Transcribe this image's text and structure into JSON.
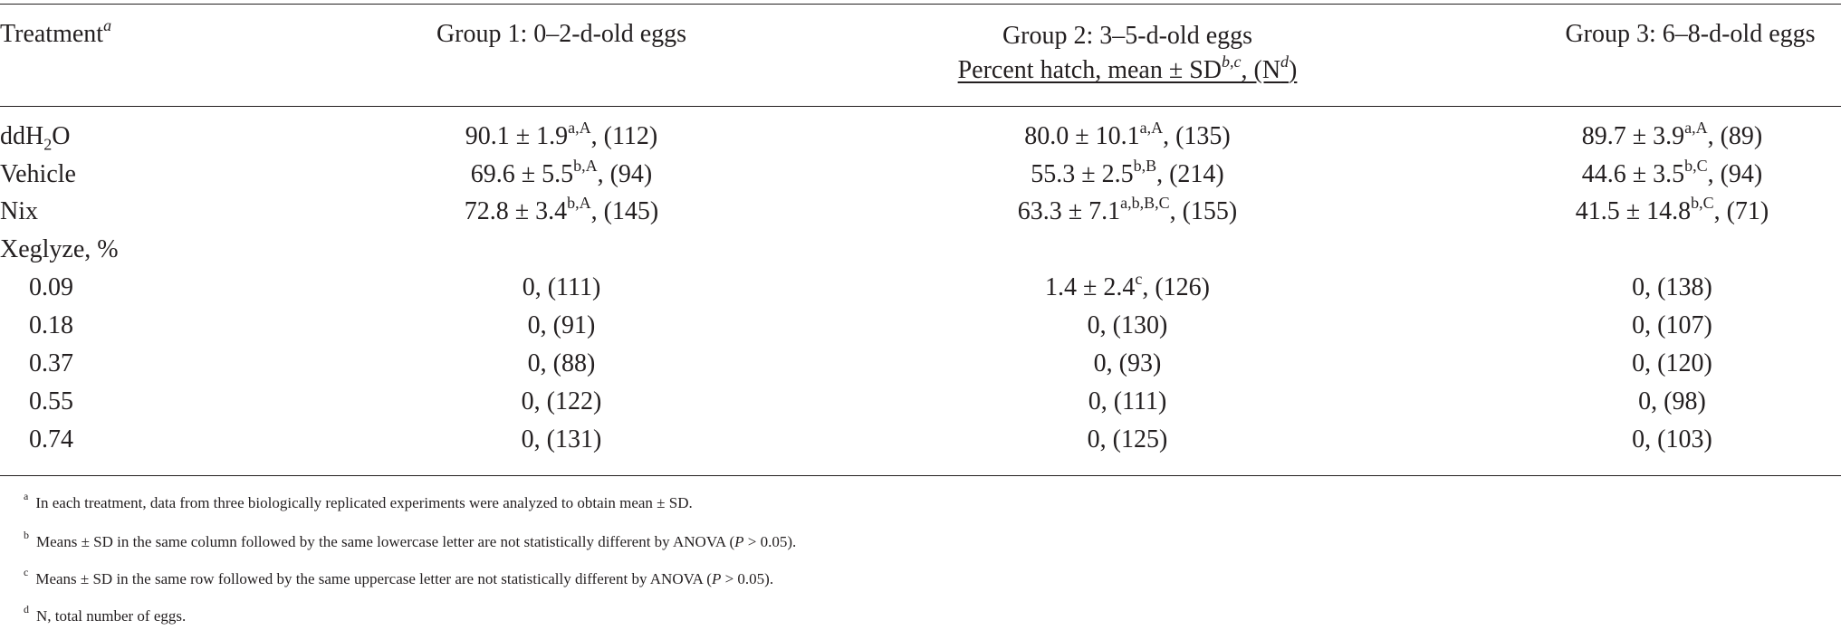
{
  "header": {
    "treatment": "Treatment",
    "treatment_sup": "a",
    "group1": "Group 1: 0–2-d-old eggs",
    "group2": "Group 2: 3–5-d-old eggs",
    "group3": "Group 3: 6–8-d-old eggs",
    "subheader_main": "Percent hatch, mean ± SD",
    "subheader_sup": "b,c",
    "subheader_n_open": ", (N",
    "subheader_n_sup": "d",
    "subheader_n_close": ")"
  },
  "rows": [
    {
      "label_a": "ddH",
      "label_sub": "2",
      "label_b": "O",
      "c1": {
        "val": "90.1 ± 1.9",
        "sup": "a,A",
        "n": ", (112)"
      },
      "c2": {
        "val": "80.0 ± 10.1",
        "sup": "a,A",
        "n": ", (135)"
      },
      "c3": {
        "val": "89.7 ± 3.9",
        "sup": "a,A",
        "n": ", (89)"
      }
    },
    {
      "label": "Vehicle",
      "c1": {
        "val": "69.6 ± 5.5",
        "sup": "b,A",
        "n": ", (94)"
      },
      "c2": {
        "val": "55.3 ± 2.5",
        "sup": "b,B",
        "n": ", (214)"
      },
      "c3": {
        "val": "44.6 ± 3.5",
        "sup": "b,C",
        "n": ", (94)"
      }
    },
    {
      "label": "Nix",
      "c1": {
        "val": "72.8 ± 3.4",
        "sup": "b,A",
        "n": ", (145)"
      },
      "c2": {
        "val": "63.3 ± 7.1",
        "sup": "a,b,B,C",
        "n": ", (155)"
      },
      "c3": {
        "val": "41.5 ± 14.8",
        "sup": "b,C",
        "n": ", (71)"
      }
    },
    {
      "label": "Xeglyze, %"
    },
    {
      "label": "0.09",
      "c1": {
        "val": "0, (111)"
      },
      "c2": {
        "val": "1.4 ± 2.4",
        "sup": "c",
        "n": ", (126)"
      },
      "c3": {
        "val": "0, (138)"
      }
    },
    {
      "label": "0.18",
      "c1": {
        "val": "0, (91)"
      },
      "c2": {
        "val": "0, (130)"
      },
      "c3": {
        "val": "0, (107)"
      }
    },
    {
      "label": "0.37",
      "c1": {
        "val": "0, (88)"
      },
      "c2": {
        "val": "0, (93)"
      },
      "c3": {
        "val": "0, (120)"
      }
    },
    {
      "label": "0.55",
      "c1": {
        "val": "0, (122)"
      },
      "c2": {
        "val": "0, (111)"
      },
      "c3": {
        "val": "0, (98)"
      }
    },
    {
      "label": "0.74",
      "c1": {
        "val": "0, (131)"
      },
      "c2": {
        "val": "0, (125)"
      },
      "c3": {
        "val": "0, (103)"
      }
    }
  ],
  "footnotes": {
    "a": {
      "mark": "a",
      "text": "In each treatment, data from three biologically replicated experiments were analyzed to obtain mean ± SD."
    },
    "b": {
      "mark": "b",
      "pre": "Means ± SD in the same column followed by the same lowercase letter are not statistically different by ANOVA (",
      "p": "P",
      "post": " > 0.05)."
    },
    "c": {
      "mark": "c",
      "pre": "Means ± SD in the same row followed by the same uppercase letter are not statistically different by ANOVA (",
      "p": "P",
      "post": " > 0.05)."
    },
    "d": {
      "mark": "d",
      "text": "N, total number of eggs."
    }
  }
}
